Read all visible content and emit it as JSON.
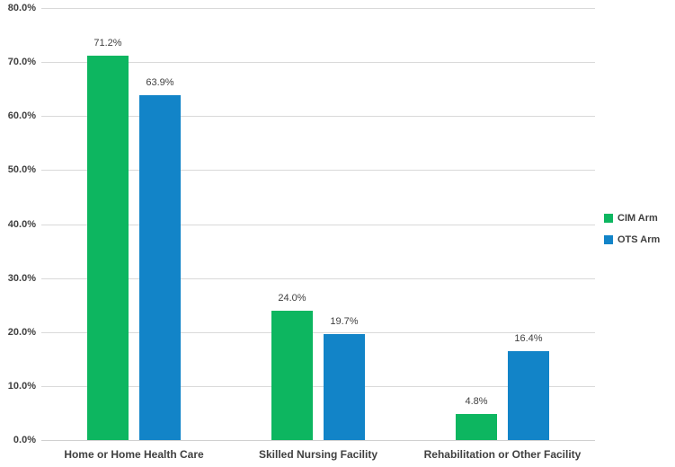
{
  "chart_data": {
    "type": "bar",
    "title": "",
    "categories": [
      "Home or Home Health Care",
      "Skilled Nursing Facility",
      "Rehabilitation or Other Facility"
    ],
    "series": [
      {
        "name": "CIM Arm",
        "color": "#0db660",
        "values": [
          71.2,
          24.0,
          4.8
        ],
        "data_labels": [
          "71.2%",
          "24.0%",
          "4.8%"
        ]
      },
      {
        "name": "OTS Arm",
        "color": "#1284c8",
        "values": [
          63.9,
          19.7,
          16.4
        ],
        "data_labels": [
          "63.9%",
          "19.7%",
          "16.4%"
        ]
      }
    ],
    "y_axis": {
      "min": 0,
      "max": 80,
      "step": 10,
      "tick_labels": [
        "0.0%",
        "10.0%",
        "20.0%",
        "30.0%",
        "40.0%",
        "50.0%",
        "60.0%",
        "70.0%",
        "80.0%"
      ]
    },
    "xlabel": "",
    "ylabel": "",
    "grid": true,
    "legend_position": "right",
    "gridline_color": "#d9d9d9",
    "text_color": "#404040",
    "background_color": "#ffffff"
  }
}
